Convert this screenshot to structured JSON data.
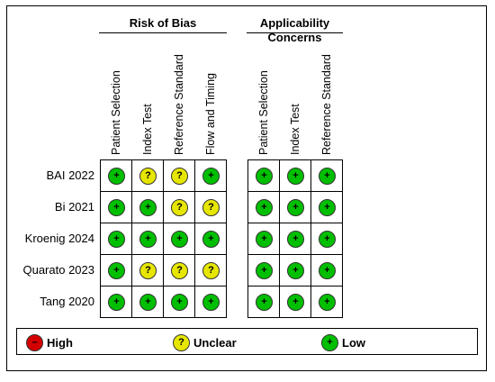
{
  "chart_data": {
    "type": "table",
    "groups": [
      {
        "title": "Risk of Bias",
        "columns": [
          "Patient Selection",
          "Index Test",
          "Reference Standard",
          "Flow and Timing"
        ]
      },
      {
        "title": "Applicability Concerns",
        "columns": [
          "Patient Selection",
          "Index Test",
          "Reference Standard"
        ]
      }
    ],
    "rows": [
      {
        "study": "BAI 2022",
        "risk": [
          "low",
          "unclear",
          "unclear",
          "low"
        ],
        "applicability": [
          "low",
          "low",
          "low"
        ]
      },
      {
        "study": "Bi 2021",
        "risk": [
          "low",
          "low",
          "unclear",
          "unclear"
        ],
        "applicability": [
          "low",
          "low",
          "low"
        ]
      },
      {
        "study": "Kroenig 2024",
        "risk": [
          "low",
          "low",
          "low",
          "low"
        ],
        "applicability": [
          "low",
          "low",
          "low"
        ]
      },
      {
        "study": "Quarato 2023",
        "risk": [
          "low",
          "unclear",
          "unclear",
          "unclear"
        ],
        "applicability": [
          "low",
          "low",
          "low"
        ]
      },
      {
        "study": "Tang 2020",
        "risk": [
          "low",
          "low",
          "low",
          "low"
        ],
        "applicability": [
          "low",
          "low",
          "low"
        ]
      }
    ],
    "symbols": {
      "low": "+",
      "unclear": "?",
      "high": "–"
    },
    "colors": {
      "low": "#00bf00",
      "unclear": "#e6e600",
      "high": "#d40000"
    },
    "legend": [
      {
        "key": "high",
        "label": "High",
        "symbol": "–"
      },
      {
        "key": "unclear",
        "label": "Unclear",
        "symbol": "?"
      },
      {
        "key": "low",
        "label": "Low",
        "symbol": "+"
      }
    ]
  }
}
